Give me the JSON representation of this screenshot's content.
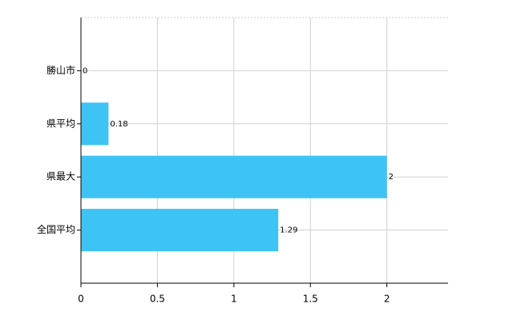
{
  "chart_data": {
    "type": "barh",
    "categories": [
      "勝山市",
      "県平均",
      "県最大",
      "全国平均"
    ],
    "values": [
      0,
      0.18,
      2,
      1.29
    ],
    "color": "#3ec3f5",
    "xlim": [
      0,
      2.4
    ],
    "xticks": [
      0,
      0.5,
      1,
      1.5,
      2
    ],
    "grid": true
  }
}
